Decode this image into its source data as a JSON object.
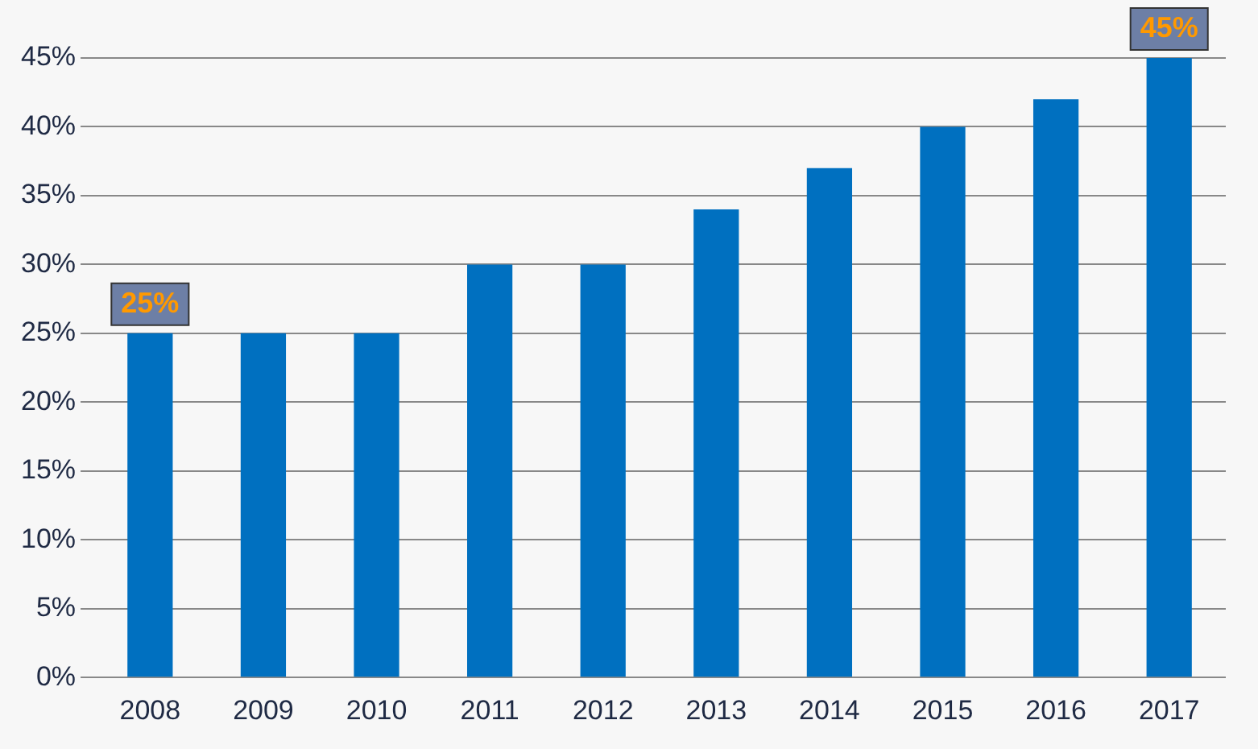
{
  "chart_data": {
    "type": "bar",
    "categories": [
      "2008",
      "2009",
      "2010",
      "2011",
      "2012",
      "2013",
      "2014",
      "2015",
      "2016",
      "2017"
    ],
    "values": [
      25,
      25,
      25,
      30,
      30,
      34,
      37,
      40,
      42,
      45
    ],
    "value_labels": [
      "25%",
      null,
      null,
      null,
      null,
      null,
      null,
      null,
      null,
      "45%"
    ],
    "color": "#0070c0",
    "ylim": [
      0,
      45
    ],
    "yticks": [
      {
        "value": 0,
        "label": "0%"
      },
      {
        "value": 5,
        "label": "5%"
      },
      {
        "value": 10,
        "label": "10%"
      },
      {
        "value": 15,
        "label": "15%"
      },
      {
        "value": 20,
        "label": "20%"
      },
      {
        "value": 25,
        "label": "25%"
      },
      {
        "value": 30,
        "label": "30%"
      },
      {
        "value": 35,
        "label": "35%"
      },
      {
        "value": 40,
        "label": "40%"
      },
      {
        "value": 45,
        "label": "45%"
      }
    ],
    "grid": "y",
    "legend": false
  }
}
